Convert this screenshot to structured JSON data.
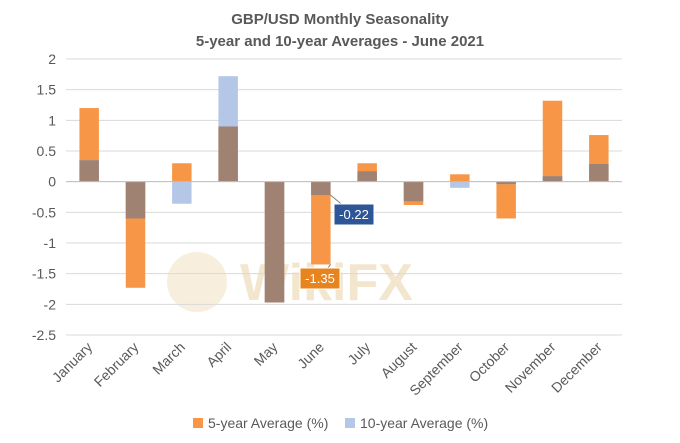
{
  "chart_data": {
    "type": "bar",
    "title": "GBP/USD Monthly Seasonality",
    "subtitle": "5-year and 10-year Averages - June 2021",
    "categories": [
      "January",
      "February",
      "March",
      "April",
      "May",
      "June",
      "July",
      "August",
      "September",
      "October",
      "November",
      "December"
    ],
    "series": [
      {
        "name": "5-year Average (%)",
        "color": "#F79646",
        "values": [
          1.2,
          -1.73,
          0.3,
          0.9,
          -1.97,
          -1.35,
          0.3,
          -0.38,
          0.12,
          -0.6,
          1.32,
          0.76
        ]
      },
      {
        "name": "10-year Average (%)",
        "color": "#B4C7E7",
        "values": [
          0.35,
          -0.6,
          -0.36,
          1.72,
          -1.97,
          -0.22,
          0.17,
          -0.32,
          -0.1,
          -0.04,
          0.09,
          0.29
        ]
      }
    ],
    "overlap_color": "#A08272",
    "ylim": [
      -2.5,
      2
    ],
    "yticks": [
      "2",
      "1.5",
      "1",
      "0.5",
      "0",
      "-0.5",
      "-1",
      "-1.5",
      "-2",
      "-2.5"
    ],
    "ytick_values": [
      2,
      1.5,
      1,
      0.5,
      0,
      -0.5,
      -1,
      -1.5,
      -2,
      -2.5
    ],
    "annotations": [
      {
        "label": "-0.22",
        "category": "June",
        "series": "10-year Average (%)",
        "color": "#2E5597"
      },
      {
        "label": "-1.35",
        "category": "June",
        "series": "5-year Average (%)",
        "color": "#E8841E"
      }
    ],
    "legend_position": "bottom",
    "grid": true,
    "watermark": "WikiFX"
  }
}
